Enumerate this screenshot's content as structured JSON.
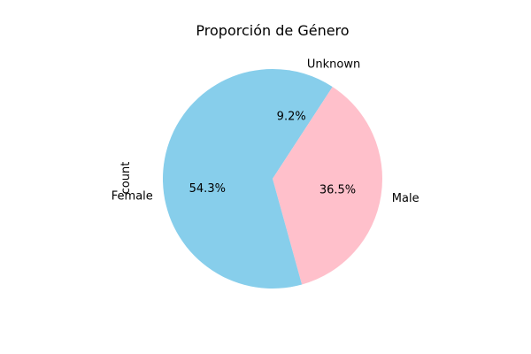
{
  "chart_data": {
    "type": "pie",
    "title": "Proporción de Género",
    "ylabel": "count",
    "start_angle_deg": 90,
    "direction": "clockwise",
    "slices": [
      {
        "label": "Unknown",
        "value": 9.2,
        "pct_label": "9.2%",
        "color": "#87CEEB"
      },
      {
        "label": "Male",
        "value": 36.5,
        "pct_label": "36.5%",
        "color": "#FFC0CB"
      },
      {
        "label": "Female",
        "value": 54.3,
        "pct_label": "54.3%",
        "color": "#87CEEB"
      }
    ]
  }
}
